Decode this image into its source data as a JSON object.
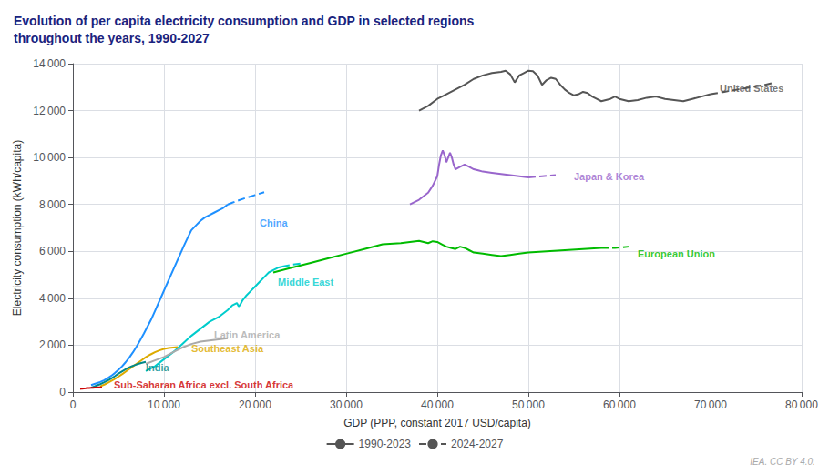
{
  "chart_data": {
    "type": "line",
    "title": "Evolution of per capita electricity consumption and GDP in selected regions\nthroughout the years, 1990-2027",
    "xlabel": "GDP (PPP, constant 2017 USD/capita)",
    "ylabel": "Electricity consumption (kWh/capita)",
    "source": "IEA. CC BY 4.0.",
    "xlim": [
      0,
      80000
    ],
    "ylim": [
      0,
      14000
    ],
    "xticks": [
      0,
      {
        "value": 10000,
        "label": "10 000"
      },
      {
        "value": 20000,
        "label": "20 000"
      },
      {
        "value": 30000,
        "label": "30 000"
      },
      {
        "value": 40000,
        "label": "40 000"
      },
      {
        "value": 50000,
        "label": "50 000"
      },
      {
        "value": 60000,
        "label": "60 000"
      },
      {
        "value": 70000,
        "label": "70 000"
      },
      {
        "value": 80000,
        "label": "80 000"
      }
    ],
    "yticks": [
      0,
      {
        "value": 2000,
        "label": "2 000"
      },
      {
        "value": 4000,
        "label": "4 000"
      },
      {
        "value": 6000,
        "label": "6 000"
      },
      {
        "value": 8000,
        "label": "8 000"
      },
      {
        "value": 10000,
        "label": "10 000"
      },
      {
        "value": 12000,
        "label": "12 000"
      },
      {
        "value": 14000,
        "label": "14 000"
      }
    ],
    "grid": true,
    "legend": "bottom",
    "series": [
      {
        "name": "1990-2023",
        "color": "#555555",
        "line_style": "solid",
        "x": [
          38000,
          39000,
          40000,
          41000,
          42000,
          43000,
          44000,
          45000,
          46000,
          47000,
          47500,
          48000,
          48500,
          49000,
          49500,
          50000,
          50500,
          51000,
          51500,
          52000,
          52500,
          53000,
          53500,
          54000,
          54500,
          55000,
          55500,
          56000,
          56500,
          57000,
          57500,
          58000,
          58500,
          59000,
          59500,
          60000,
          61000,
          62000,
          63000,
          64000,
          65000,
          66000,
          67000,
          68000,
          69000,
          70000
        ],
        "values": [
          12000,
          12200,
          12500,
          12700,
          12900,
          13100,
          13350,
          13500,
          13600,
          13650,
          13700,
          13550,
          13200,
          13500,
          13600,
          13700,
          13680,
          13500,
          13100,
          13300,
          13400,
          13350,
          13100,
          12900,
          12750,
          12650,
          12700,
          12800,
          12750,
          12600,
          12500,
          12400,
          12450,
          12500,
          12600,
          12500,
          12400,
          12450,
          12550,
          12600,
          12500,
          12450,
          12400,
          12500,
          12600,
          12700
        ]
      },
      {
        "name": "2024-2027",
        "color": "#555555",
        "line_style": "dashed",
        "x": [
          70000,
          71500,
          73000,
          74500,
          76000,
          77000
        ],
        "values": [
          12700,
          12800,
          12900,
          13000,
          13100,
          13200
        ]
      },
      {
        "name": "1990-2023",
        "color": "#9966cc",
        "line_style": "solid",
        "x": [
          37000,
          38000,
          39000,
          39500,
          40000,
          40200,
          40400,
          40600,
          40800,
          41000,
          41200,
          41400,
          41600,
          41800,
          42000,
          42500,
          43000,
          43500,
          44000,
          44500,
          45000,
          46000,
          47000,
          48000,
          49000,
          50000
        ],
        "values": [
          8000,
          8200,
          8500,
          8800,
          9200,
          9700,
          10100,
          10300,
          10100,
          9800,
          10000,
          10200,
          10000,
          9700,
          9500,
          9600,
          9700,
          9600,
          9500,
          9450,
          9400,
          9350,
          9300,
          9250,
          9200,
          9150
        ]
      },
      {
        "name": "2024-2027",
        "color": "#9966cc",
        "line_style": "dashed",
        "x": [
          50000,
          51500,
          53000
        ],
        "values": [
          9150,
          9200,
          9250
        ]
      },
      {
        "name": "1990-2023",
        "color": "#00bb00",
        "line_style": "solid",
        "x": [
          22000,
          24000,
          26000,
          28000,
          30000,
          32000,
          34000,
          36000,
          37000,
          38000,
          38500,
          39000,
          39500,
          40000,
          40500,
          41000,
          41500,
          42000,
          42500,
          43000,
          43500,
          44000,
          45000,
          46000,
          47000,
          48000,
          49000,
          50000,
          52000,
          54000,
          56000,
          58000
        ],
        "values": [
          5100,
          5300,
          5500,
          5700,
          5900,
          6100,
          6300,
          6350,
          6400,
          6450,
          6400,
          6350,
          6430,
          6400,
          6300,
          6200,
          6150,
          6100,
          6200,
          6150,
          6050,
          5950,
          5900,
          5850,
          5800,
          5850,
          5900,
          5950,
          6000,
          6050,
          6100,
          6150
        ]
      },
      {
        "name": "2024-2027",
        "color": "#00bb00",
        "line_style": "dashed",
        "x": [
          58000,
          59500,
          61000
        ],
        "values": [
          6150,
          6150,
          6200
        ]
      },
      {
        "name": "1990-2023",
        "color": "#00cccc",
        "line_style": "solid",
        "x": [
          8000,
          9000,
          10000,
          11000,
          12000,
          13000,
          14000,
          15000,
          16000,
          17000,
          17500,
          18000,
          18200,
          18400,
          18600,
          19000,
          19500,
          20000,
          20500,
          21000,
          21500,
          22000,
          22500,
          23000
        ],
        "values": [
          900,
          1100,
          1400,
          1700,
          2050,
          2400,
          2700,
          3000,
          3200,
          3500,
          3700,
          3800,
          3650,
          3750,
          3900,
          4100,
          4300,
          4500,
          4700,
          4900,
          5100,
          5200,
          5300,
          5350
        ]
      },
      {
        "name": "2024-2027",
        "color": "#00cccc",
        "line_style": "dashed",
        "x": [
          23000,
          24000,
          25000
        ],
        "values": [
          5350,
          5430,
          5480
        ]
      },
      {
        "name": "1990-2023",
        "color": "#1e90ff",
        "line_style": "solid",
        "x": [
          2000,
          2300,
          2600,
          3000,
          3400,
          3800,
          4200,
          4600,
          5000,
          5400,
          5800,
          6200,
          6600,
          7000,
          7400,
          7800,
          8200,
          8600,
          9000,
          9400,
          9800,
          10200,
          10600,
          11000,
          11400,
          11800,
          12200,
          12600,
          13000,
          13500,
          14000,
          14500,
          15000,
          15500,
          16000,
          16500,
          17000
        ],
        "values": [
          300,
          340,
          380,
          430,
          500,
          590,
          690,
          810,
          950,
          1100,
          1280,
          1480,
          1700,
          1950,
          2220,
          2500,
          2800,
          3100,
          3450,
          3800,
          4150,
          4500,
          4850,
          5200,
          5550,
          5900,
          6250,
          6580,
          6900,
          7100,
          7300,
          7450,
          7550,
          7650,
          7750,
          7850,
          8000
        ]
      },
      {
        "name": "2024-2027",
        "color": "#1e90ff",
        "line_style": "dashed",
        "x": [
          17000,
          18000,
          19000,
          20000,
          21000
        ],
        "values": [
          8000,
          8150,
          8280,
          8400,
          8520
        ]
      },
      {
        "name": "1990-2023",
        "color": "#aaaaaa",
        "line_style": "solid",
        "x": [
          8000,
          9000,
          10000,
          11000,
          12000,
          13000,
          14000,
          15000,
          16000,
          17000
        ],
        "values": [
          1200,
          1350,
          1500,
          1700,
          1900,
          2050,
          2150,
          2200,
          2250,
          2300
        ]
      },
      {
        "name": "1990-2023",
        "color": "#ddaa00",
        "line_style": "solid",
        "x": [
          3000,
          3500,
          4000,
          4500,
          5000,
          5500,
          6000,
          6500,
          7000,
          7500,
          8000,
          8500,
          9000,
          9500,
          10000,
          10500,
          11000,
          11500
        ],
        "values": [
          250,
          330,
          430,
          540,
          660,
          790,
          930,
          1070,
          1210,
          1350,
          1490,
          1600,
          1700,
          1780,
          1840,
          1880,
          1900,
          1920
        ]
      },
      {
        "name": "1990-2023",
        "color": "#008888",
        "line_style": "solid",
        "x": [
          2000,
          2300,
          2600,
          3000,
          3400,
          3800,
          4200,
          4600,
          5000,
          5500,
          6000,
          6500,
          7000,
          7500,
          8000
        ],
        "values": [
          190,
          230,
          280,
          340,
          410,
          490,
          580,
          680,
          790,
          910,
          1020,
          1110,
          1180,
          1240,
          1290
        ]
      },
      {
        "name": "1990-2023",
        "color": "#cc0000",
        "line_style": "solid",
        "x": [
          800,
          1000,
          1200,
          1400,
          1600,
          1800,
          2000,
          2200,
          2400,
          2600,
          2800,
          3000,
          3200
        ],
        "values": [
          140,
          150,
          158,
          165,
          172,
          178,
          183,
          188,
          192,
          196,
          200,
          203,
          206
        ]
      }
    ],
    "annotations": [
      {
        "text": "United States",
        "x": 71000,
        "y": 12950,
        "color": "#555555"
      },
      {
        "text": "Japan & Korea",
        "x": 55000,
        "y": 9200,
        "color": "#9966cc"
      },
      {
        "text": "European Union",
        "x": 62000,
        "y": 5900,
        "color": "#00bb00"
      },
      {
        "text": "Middle East",
        "x": 22500,
        "y": 4700,
        "color": "#00cccc"
      },
      {
        "text": "China",
        "x": 20500,
        "y": 7200,
        "color": "#1e90ff"
      },
      {
        "text": "Latin America",
        "x": 15500,
        "y": 2450,
        "color": "#aaaaaa"
      },
      {
        "text": "Southeast Asia",
        "x": 13000,
        "y": 1850,
        "color": "#ddaa00"
      },
      {
        "text": "India",
        "x": 8000,
        "y": 1060,
        "color": "#008888"
      },
      {
        "text": "Sub-Saharan Africa excl. South Africa",
        "x": 4500,
        "y": 310,
        "color": "#cc0000"
      }
    ]
  }
}
